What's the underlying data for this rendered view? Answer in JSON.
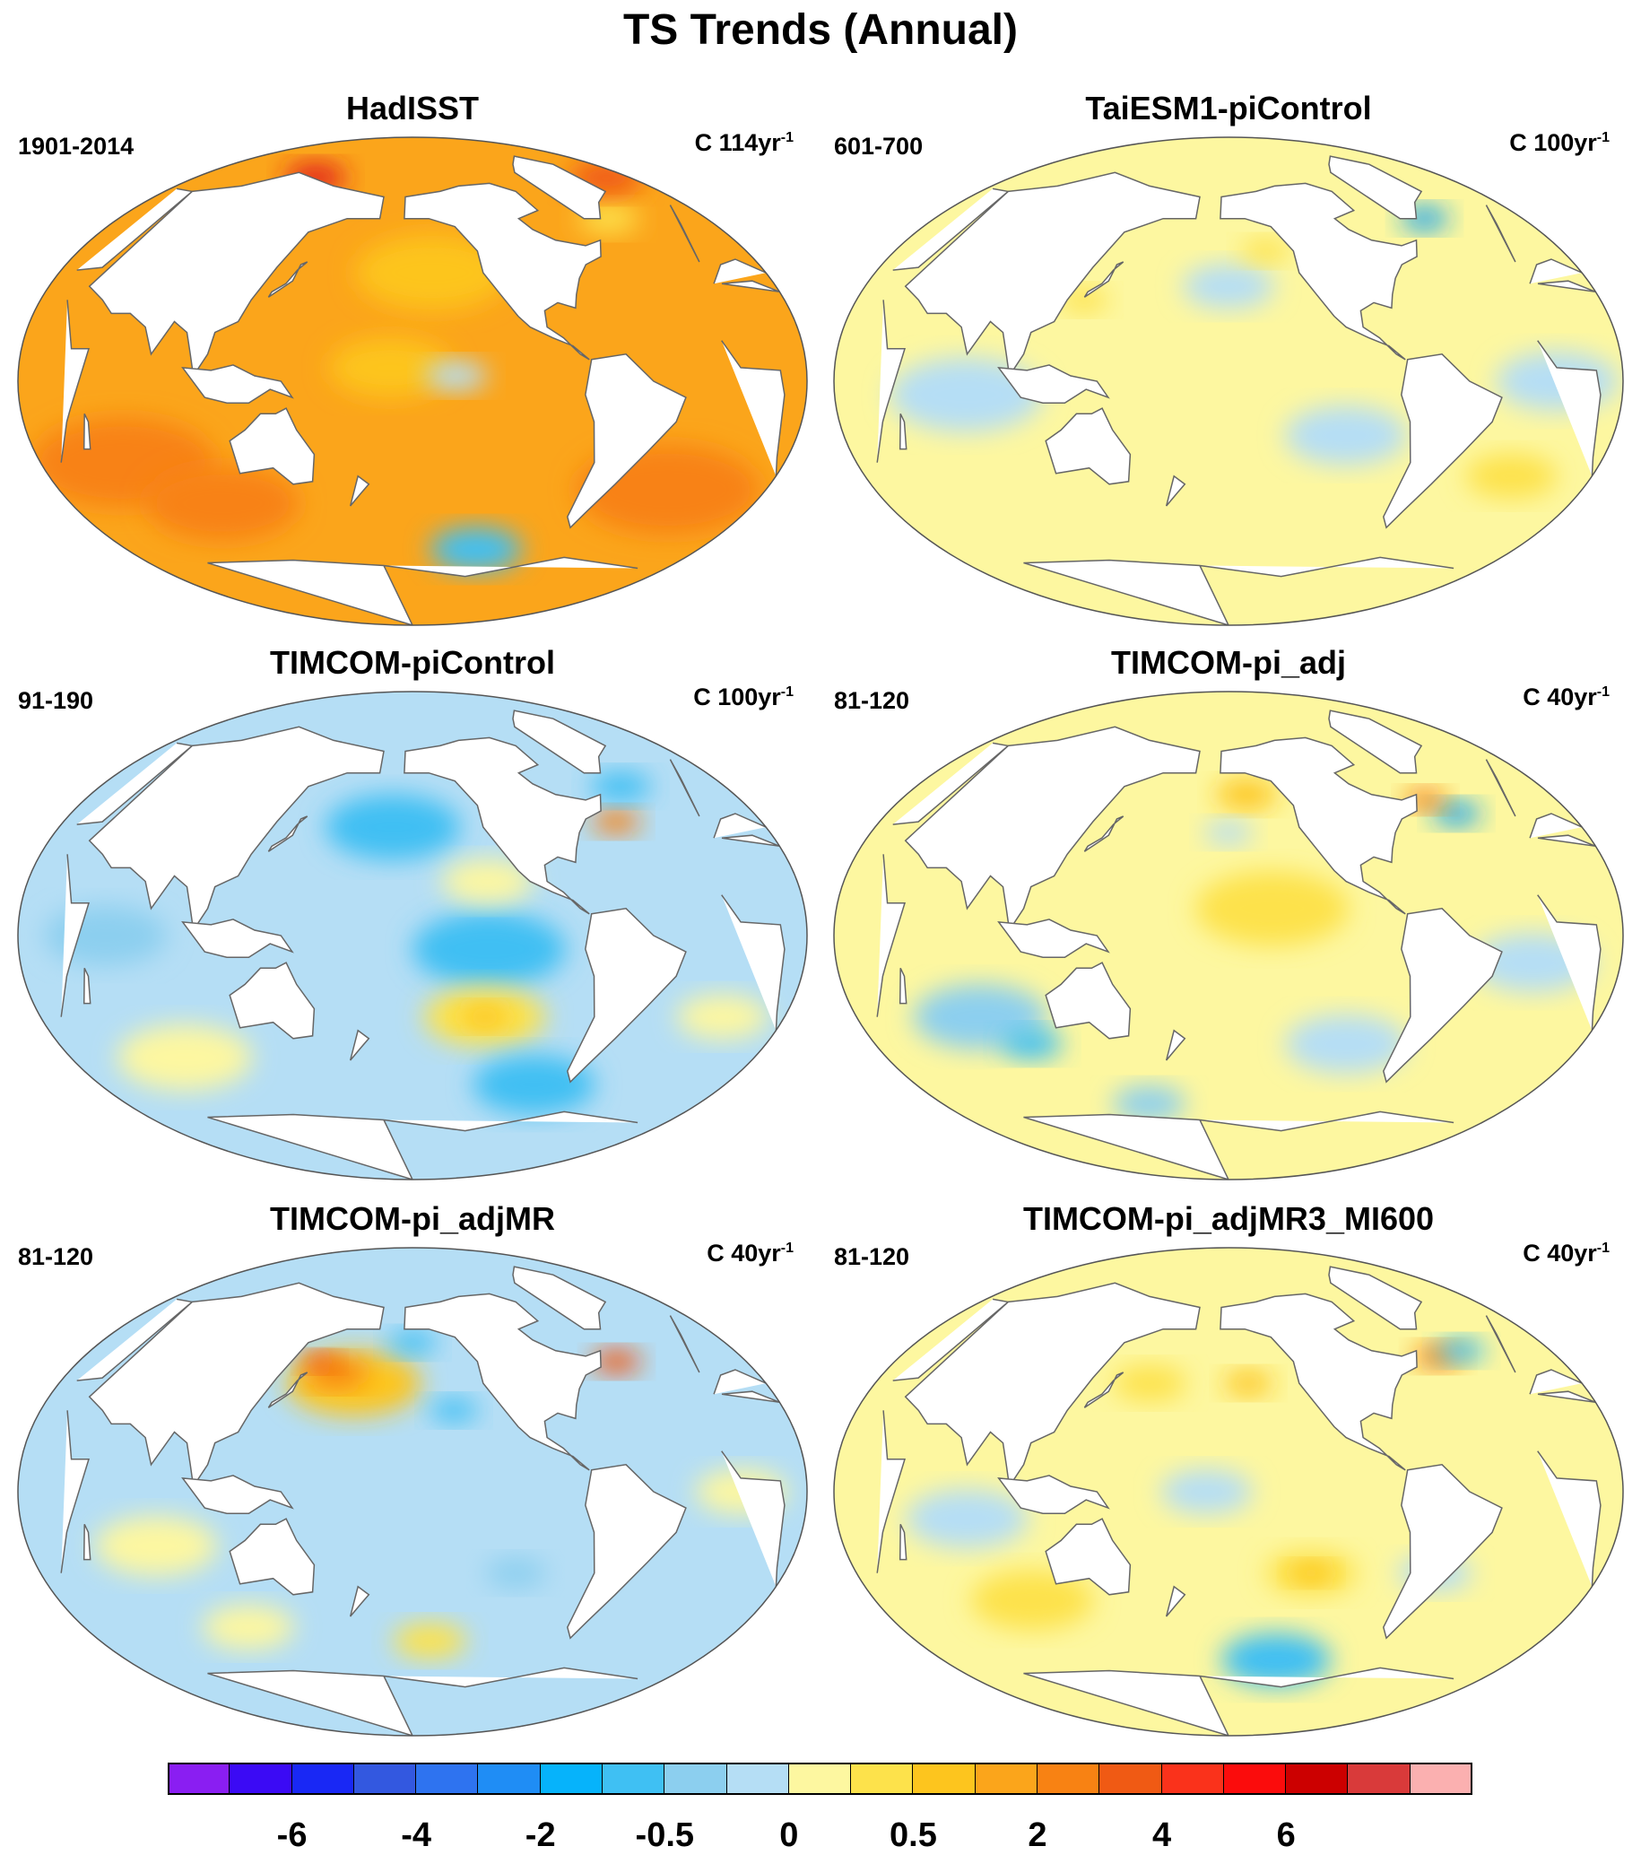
{
  "figure": {
    "title": "TS Trends (Annual)"
  },
  "colors": {
    "ocean_by_level": {
      "-1": "#b5def5",
      "-2": "#8ccfef",
      "-3": "#3fbff3",
      "-4": "#1fa6ee",
      "1": "#fdf7a0",
      "2": "#fde24b",
      "3": "#fdc51e",
      "4": "#fba51b",
      "5": "#f88213",
      "6": "#f05a14",
      "7": "#e2221d"
    },
    "land": "#ffffff",
    "coast": "#666666"
  },
  "panels": [
    {
      "title": "HadISST",
      "period": "1901-2014",
      "units": "C 114yr",
      "units_exp": "-1",
      "ocean_level": 4,
      "blobs": [
        {
          "lon": -150,
          "lat": 40,
          "r": 25,
          "level": 3
        },
        {
          "lon": 60,
          "lat": -30,
          "r": 30,
          "level": 5
        },
        {
          "lon": -30,
          "lat": -40,
          "r": 30,
          "level": 5
        },
        {
          "lon": 100,
          "lat": -45,
          "r": 25,
          "level": 5
        },
        {
          "lon": -170,
          "lat": 5,
          "r": 20,
          "level": 3
        },
        {
          "lon": -120,
          "lat": -62,
          "r": 15,
          "level": -3
        },
        {
          "lon": -140,
          "lat": 2,
          "r": 10,
          "level": -1
        },
        {
          "lon": -40,
          "lat": 60,
          "r": 10,
          "level": 2
        },
        {
          "lon": 0,
          "lat": 75,
          "r": 12,
          "level": 6
        },
        {
          "lon": 120,
          "lat": 75,
          "r": 10,
          "level": 7
        }
      ]
    },
    {
      "title": "TaiESM1-piControl",
      "period": "601-700",
      "units": "C 100yr",
      "units_exp": "-1",
      "ocean_level": 1,
      "blobs": [
        {
          "lon": 80,
          "lat": -5,
          "r": 25,
          "level": -1
        },
        {
          "lon": -160,
          "lat": 35,
          "r": 15,
          "level": -1
        },
        {
          "lon": -105,
          "lat": -20,
          "r": 20,
          "level": -1
        },
        {
          "lon": -10,
          "lat": 0,
          "r": 20,
          "level": -1
        },
        {
          "lon": 130,
          "lat": 30,
          "r": 8,
          "level": 2
        },
        {
          "lon": -20,
          "lat": -35,
          "r": 15,
          "level": 2
        },
        {
          "lon": -40,
          "lat": 60,
          "r": 8,
          "level": -4
        },
        {
          "lon": -140,
          "lat": 48,
          "r": 8,
          "level": 2
        }
      ]
    },
    {
      "title": "TIMCOM-piControl",
      "period": "91-190",
      "units": "C 100yr",
      "units_exp": "-1",
      "ocean_level": -1,
      "blobs": [
        {
          "lon": -170,
          "lat": 40,
          "r": 22,
          "level": -3
        },
        {
          "lon": -125,
          "lat": -5,
          "r": 25,
          "level": -3
        },
        {
          "lon": -125,
          "lat": 20,
          "r": 15,
          "level": 1
        },
        {
          "lon": -125,
          "lat": -30,
          "r": 20,
          "level": 2
        },
        {
          "lon": -125,
          "lat": -30,
          "r": 8,
          "level": 3
        },
        {
          "lon": -90,
          "lat": -55,
          "r": 20,
          "level": -3
        },
        {
          "lon": -55,
          "lat": 42,
          "r": 8,
          "level": 5
        },
        {
          "lon": -40,
          "lat": 55,
          "r": 10,
          "level": -3
        },
        {
          "lon": 80,
          "lat": -45,
          "r": 22,
          "level": 1
        },
        {
          "lon": 60,
          "lat": 0,
          "r": 20,
          "level": -2
        },
        {
          "lon": -10,
          "lat": -30,
          "r": 15,
          "level": 1
        }
      ]
    },
    {
      "title": "TIMCOM-pi_adj",
      "period": "81-120",
      "units": "C 40yr",
      "units_exp": "-1",
      "ocean_level": 1,
      "blobs": [
        {
          "lon": -140,
          "lat": 10,
          "r": 25,
          "level": 2
        },
        {
          "lon": 80,
          "lat": -30,
          "r": 22,
          "level": -2
        },
        {
          "lon": 100,
          "lat": -40,
          "r": 10,
          "level": -3
        },
        {
          "lon": -20,
          "lat": -10,
          "r": 20,
          "level": -1
        },
        {
          "lon": -100,
          "lat": -40,
          "r": 20,
          "level": -1
        },
        {
          "lon": -40,
          "lat": 45,
          "r": 8,
          "level": -4
        },
        {
          "lon": -52,
          "lat": 50,
          "r": 7,
          "level": 5
        },
        {
          "lon": -150,
          "lat": 52,
          "r": 10,
          "level": 3
        },
        {
          "lon": -160,
          "lat": 38,
          "r": 8,
          "level": -1
        },
        {
          "lon": 150,
          "lat": -62,
          "r": 12,
          "level": -2
        }
      ]
    },
    {
      "title": "TIMCOM-pi_adjMR",
      "period": "81-120",
      "units": "C 40yr",
      "units_exp": "-1",
      "ocean_level": -1,
      "blobs": [
        {
          "lon": 170,
          "lat": 40,
          "r": 22,
          "level": 3
        },
        {
          "lon": 160,
          "lat": 44,
          "r": 10,
          "level": 5
        },
        {
          "lon": 150,
          "lat": 48,
          "r": 6,
          "level": 6
        },
        {
          "lon": -160,
          "lat": 55,
          "r": 8,
          "level": -3
        },
        {
          "lon": -140,
          "lat": 30,
          "r": 8,
          "level": -3
        },
        {
          "lon": -50,
          "lat": 48,
          "r": 8,
          "level": 6
        },
        {
          "lon": 80,
          "lat": -20,
          "r": 20,
          "level": 1
        },
        {
          "lon": -10,
          "lat": 0,
          "r": 15,
          "level": 1
        },
        {
          "lon": -150,
          "lat": -55,
          "r": 12,
          "level": 2
        },
        {
          "lon": 110,
          "lat": -50,
          "r": 15,
          "level": 1
        },
        {
          "lon": -110,
          "lat": -30,
          "r": 10,
          "level": -2
        }
      ]
    },
    {
      "title": "TIMCOM-pi_adjMR3_MI600",
      "period": "81-120",
      "units": "C 40yr",
      "units_exp": "-1",
      "ocean_level": 1,
      "blobs": [
        {
          "lon": -120,
          "lat": -30,
          "r": 15,
          "level": 2
        },
        {
          "lon": -120,
          "lat": -30,
          "r": 7,
          "level": 3
        },
        {
          "lon": 80,
          "lat": -10,
          "r": 20,
          "level": -1
        },
        {
          "lon": -60,
          "lat": -30,
          "r": 12,
          "level": -1
        },
        {
          "lon": -130,
          "lat": -62,
          "r": 18,
          "level": -3
        },
        {
          "lon": -45,
          "lat": 50,
          "r": 8,
          "level": 5
        },
        {
          "lon": -30,
          "lat": 52,
          "r": 8,
          "level": -3
        },
        {
          "lon": 160,
          "lat": 40,
          "r": 12,
          "level": 2
        },
        {
          "lon": -150,
          "lat": 40,
          "r": 8,
          "level": 3
        },
        {
          "lon": 100,
          "lat": -40,
          "r": 20,
          "level": 2
        },
        {
          "lon": -170,
          "lat": 0,
          "r": 15,
          "level": -1
        }
      ]
    }
  ],
  "colorbar": {
    "colors": [
      "#8a1ef2",
      "#3b0af5",
      "#1928f5",
      "#3358e0",
      "#2e73f0",
      "#1f8df5",
      "#06b3fb",
      "#3fc0f3",
      "#8ccfef",
      "#b5def5",
      "#fdf7a0",
      "#fde24b",
      "#fdc51e",
      "#fba51b",
      "#f88213",
      "#f05a14",
      "#fa321b",
      "#fb0c0c",
      "#cc0000",
      "#d93a3a",
      "#fbb0b0"
    ],
    "tick_labels": [
      {
        "text": "-6",
        "boundary": 2
      },
      {
        "text": "-4",
        "boundary": 4
      },
      {
        "text": "-2",
        "boundary": 6
      },
      {
        "text": "-0.5",
        "boundary": 8
      },
      {
        "text": "0",
        "boundary": 10
      },
      {
        "text": "0.5",
        "boundary": 12
      },
      {
        "text": "2",
        "boundary": 14
      },
      {
        "text": "4",
        "boundary": 16
      },
      {
        "text": "6",
        "boundary": 18
      }
    ]
  }
}
